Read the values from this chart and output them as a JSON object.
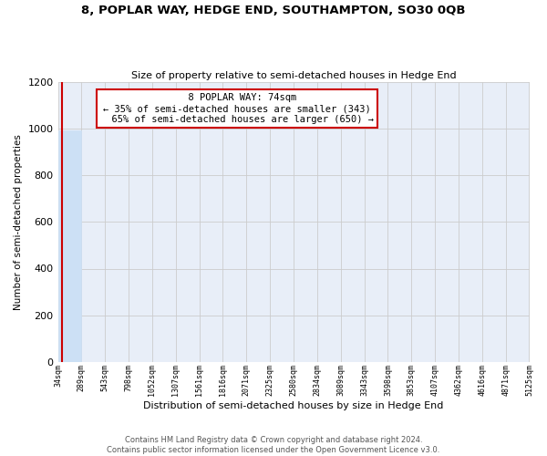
{
  "title": "8, POPLAR WAY, HEDGE END, SOUTHAMPTON, SO30 0QB",
  "subtitle": "Size of property relative to semi-detached houses in Hedge End",
  "xlabel": "Distribution of semi-detached houses by size in Hedge End",
  "ylabel": "Number of semi-detached properties",
  "property_size": 74,
  "property_label": "8 POPLAR WAY: 74sqm",
  "pct_smaller": 35,
  "pct_larger": 65,
  "n_smaller": 343,
  "n_larger": 650,
  "bin_edges": [
    34,
    289,
    543,
    798,
    1052,
    1307,
    1561,
    1816,
    2071,
    2325,
    2580,
    2834,
    3089,
    3343,
    3598,
    3853,
    4107,
    4362,
    4616,
    4871,
    5125
  ],
  "bar_heights": [
    993,
    0,
    0,
    0,
    0,
    0,
    0,
    0,
    0,
    0,
    0,
    0,
    0,
    0,
    0,
    0,
    0,
    0,
    0,
    0
  ],
  "bar_color": "#cce0f5",
  "property_line_color": "#cc0000",
  "grid_color": "#cccccc",
  "bg_color": "#e8eef8",
  "annotation_box_color": "#ffffff",
  "annotation_border_color": "#cc0000",
  "ylim": [
    0,
    1200
  ],
  "yticks": [
    0,
    200,
    400,
    600,
    800,
    1000,
    1200
  ],
  "footer_line1": "Contains HM Land Registry data © Crown copyright and database right 2024.",
  "footer_line2": "Contains public sector information licensed under the Open Government Licence v3.0."
}
